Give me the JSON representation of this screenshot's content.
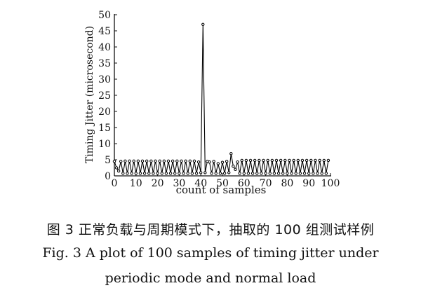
{
  "chart_data": {
    "type": "line",
    "title": "",
    "xlabel": "count of samples",
    "ylabel": "Timing Jitter (microsecond)",
    "xlim": [
      0,
      100
    ],
    "ylim": [
      0,
      50
    ],
    "x_ticks": [
      0,
      10,
      20,
      30,
      40,
      50,
      60,
      70,
      80,
      90,
      100
    ],
    "y_ticks": [
      0,
      5,
      10,
      15,
      20,
      25,
      30,
      35,
      40,
      45,
      50
    ],
    "grid": false,
    "legend": "none",
    "series": [
      {
        "color": "#000000",
        "marker": "open-circle",
        "x": [
          0,
          1,
          2,
          3,
          4,
          5,
          6,
          7,
          8,
          9,
          10,
          11,
          12,
          13,
          14,
          15,
          16,
          17,
          18,
          19,
          20,
          21,
          22,
          23,
          24,
          25,
          26,
          27,
          28,
          29,
          30,
          31,
          32,
          33,
          34,
          35,
          36,
          37,
          38,
          39,
          40,
          41,
          42,
          43,
          44,
          45,
          46,
          47,
          48,
          49,
          50,
          51,
          52,
          53,
          54,
          55,
          56,
          57,
          58,
          59,
          60,
          61,
          62,
          63,
          64,
          65,
          66,
          67,
          68,
          69,
          70,
          71,
          72,
          73,
          74,
          75,
          76,
          77,
          78,
          79,
          80,
          81,
          82,
          83,
          84,
          85,
          86,
          87,
          88,
          89,
          90,
          91,
          92,
          93,
          94,
          95,
          96,
          97,
          98,
          99
        ],
        "values": [
          4.5,
          2.5,
          1.5,
          4.5,
          0.8,
          4.6,
          0.8,
          4.6,
          0.8,
          4.6,
          0.8,
          4.6,
          0.8,
          4.6,
          0.8,
          4.6,
          0.8,
          4.6,
          0.8,
          4.6,
          0.8,
          4.6,
          0.8,
          4.6,
          0.8,
          4.6,
          0.8,
          4.6,
          0.8,
          4.6,
          0.8,
          4.6,
          0.8,
          4.6,
          0.8,
          4.6,
          0.8,
          4.6,
          0.8,
          4.3,
          1.0,
          47.0,
          1.0,
          4.5,
          4.3,
          0.8,
          4.5,
          0.8,
          3.8,
          0.8,
          4.2,
          0.8,
          4.5,
          1.0,
          6.9,
          3.0,
          2.0,
          4.3,
          0.8,
          4.8,
          0.8,
          4.8,
          0.8,
          4.8,
          0.8,
          4.8,
          0.8,
          4.8,
          0.8,
          4.8,
          0.8,
          4.8,
          0.8,
          4.8,
          0.8,
          4.8,
          0.8,
          4.8,
          0.8,
          4.8,
          0.8,
          4.8,
          0.8,
          4.8,
          0.8,
          4.8,
          0.8,
          4.8,
          0.8,
          4.8,
          0.8,
          4.8,
          0.8,
          4.8,
          0.8,
          4.8,
          0.8,
          4.8,
          0.8,
          4.8
        ]
      }
    ]
  },
  "captions": {
    "chinese": "图 3   正常负载与周期模式下，抽取的 100 组测试样例",
    "english_line1": "Fig. 3   A plot of 100 samples of timing jitter under",
    "english_line2": "periodic mode and normal load"
  }
}
